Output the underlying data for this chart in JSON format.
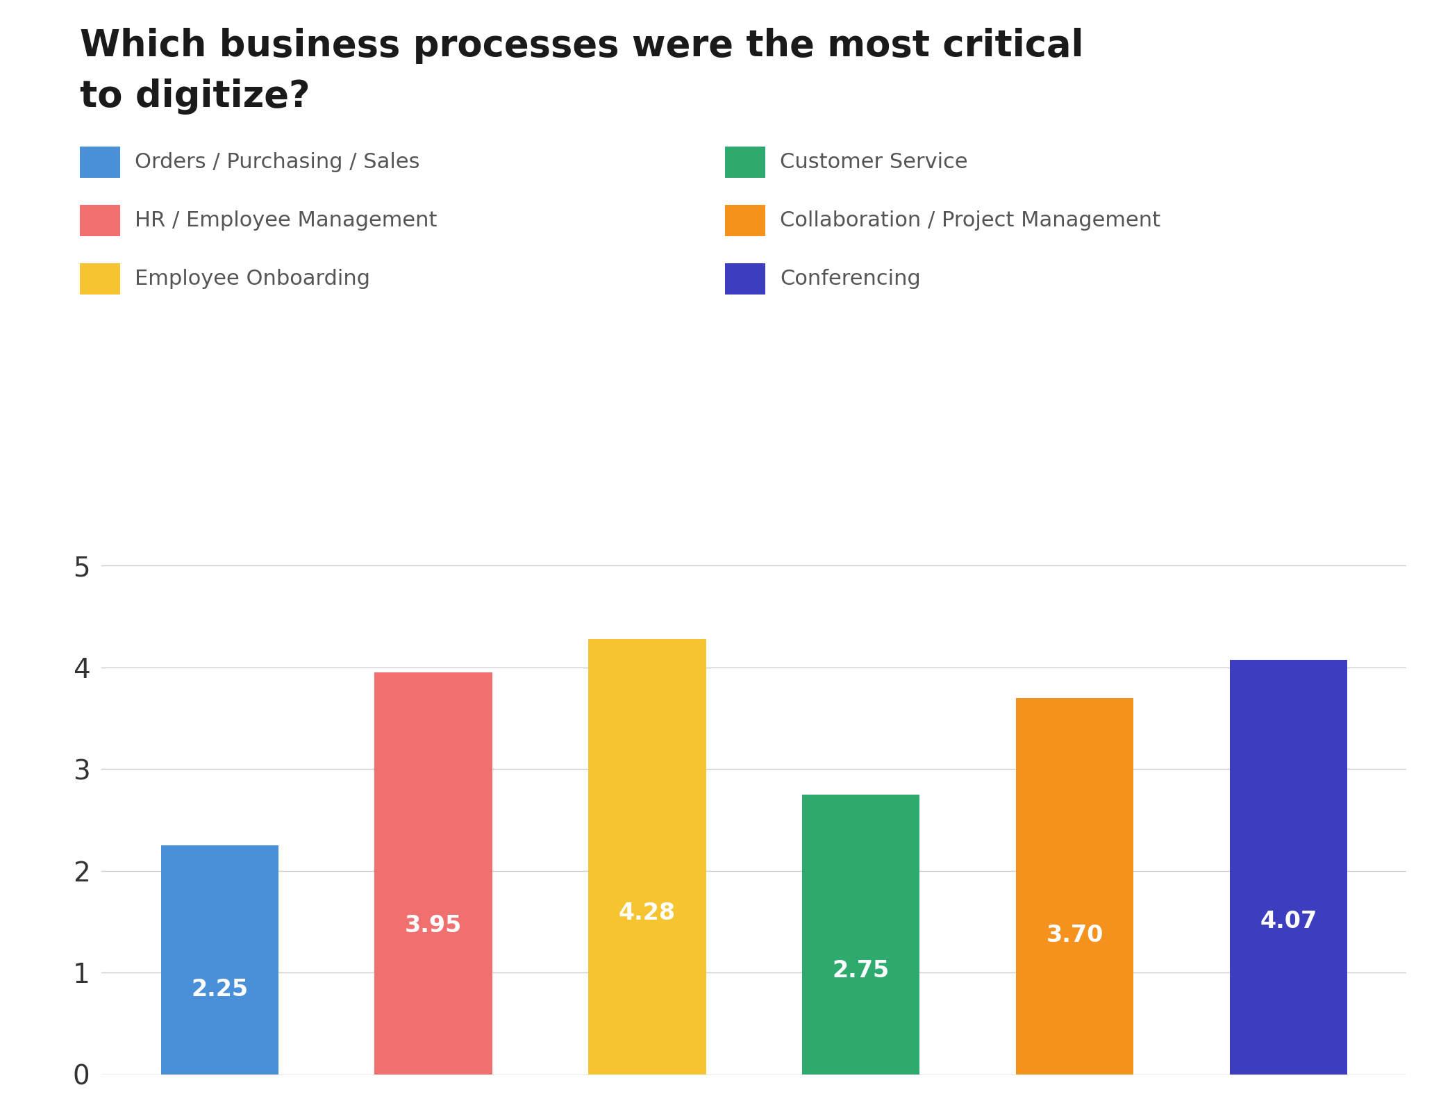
{
  "title_line1": "Which business processes were the most critical",
  "title_line2": "to digitize?",
  "title_fontsize": 38,
  "title_fontweight": "bold",
  "title_color": "#1a1a1a",
  "background_color": "#ffffff",
  "values": [
    2.25,
    3.95,
    4.28,
    2.75,
    3.7,
    4.07
  ],
  "bar_colors": [
    "#4A90D9",
    "#F07070",
    "#F5C430",
    "#2EAA6E",
    "#F5921E",
    "#3D3DBF"
  ],
  "bar_labels": [
    "2.25",
    "3.95",
    "4.28",
    "2.75",
    "3.70",
    "4.07"
  ],
  "ylim": [
    0,
    5.5
  ],
  "yticks": [
    0,
    1,
    2,
    3,
    4,
    5
  ],
  "grid_color": "#cccccc",
  "legend_labels": [
    "Orders / Purchasing / Sales",
    "HR / Employee Management",
    "Employee Onboarding",
    "Customer Service",
    "Collaboration / Project Management",
    "Conferencing"
  ],
  "legend_colors": [
    "#4A90D9",
    "#F07070",
    "#F5C430",
    "#2EAA6E",
    "#F5921E",
    "#3D3DBF"
  ],
  "label_fontsize": 24,
  "label_color": "#ffffff",
  "ytick_fontsize": 28,
  "legend_fontsize": 22,
  "legend_text_color": "#555555"
}
